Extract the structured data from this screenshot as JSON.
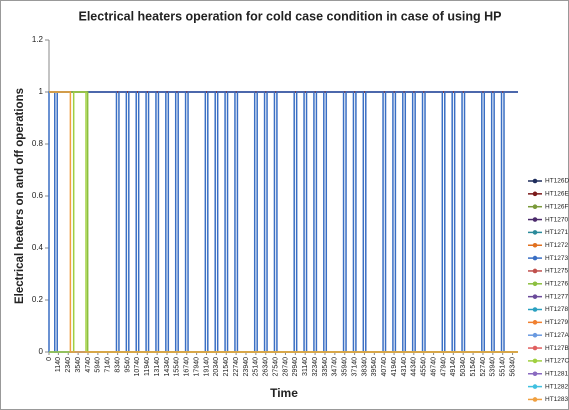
{
  "chart_data": {
    "type": "line",
    "title": "Electrical heaters operation for cold case condition in case of using HP",
    "xlabel": "Time",
    "ylabel": "Electrical heaters on and off operations",
    "xlim": [
      0,
      57000
    ],
    "xticks": [
      0,
      1140,
      2340,
      3540,
      4740,
      5940,
      7140,
      8340,
      9540,
      10740,
      11940,
      13140,
      14340,
      15540,
      16740,
      17940,
      19140,
      20340,
      21540,
      22740,
      23940,
      25140,
      26340,
      27540,
      28740,
      29940,
      31140,
      32340,
      33540,
      34740,
      35940,
      37140,
      38340,
      39540,
      40740,
      41940,
      43140,
      44340,
      45540,
      46740,
      47940,
      49140,
      50340,
      51540,
      52740,
      53940,
      55140,
      56340
    ],
    "ylim": [
      0,
      1.2
    ],
    "yticks": [
      0,
      0.2,
      0.4,
      0.6,
      0.8,
      1,
      1.2
    ],
    "legend": "right",
    "series": [
      {
        "name": "HT126D",
        "color": "#1f2d5c",
        "x": [
          0,
          57000
        ],
        "values": [
          1,
          1
        ]
      },
      {
        "name": "HT126E",
        "color": "#7b1a1a",
        "x": [
          0,
          57000
        ],
        "values": [
          1,
          1
        ]
      },
      {
        "name": "HT126F",
        "color": "#7a9a3a",
        "x": [
          0,
          57000
        ],
        "values": [
          0,
          0
        ]
      },
      {
        "name": "HT1270",
        "color": "#4b2a6b",
        "x": [
          0,
          57000
        ],
        "values": [
          0,
          0
        ]
      },
      {
        "name": "HT1271",
        "color": "#2a8a9a",
        "x": [
          0,
          57000
        ],
        "values": [
          0,
          0
        ]
      },
      {
        "name": "HT1272",
        "color": "#e07020",
        "x": [
          0,
          57000
        ],
        "values": [
          0,
          0
        ]
      },
      {
        "name": "HT1273",
        "color": "#3a6fc4",
        "x": [
          0,
          0,
          700,
          700,
          1000,
          1000,
          8200,
          8200,
          8500,
          8500,
          9400,
          9400,
          9700,
          9700,
          10600,
          10600,
          10900,
          10900,
          11800,
          11800,
          12100,
          12100,
          13000,
          13000,
          13300,
          13300,
          14200,
          14200,
          14500,
          14500,
          15400,
          15400,
          15700,
          15700,
          16600,
          16600,
          16900,
          16900,
          19000,
          19000,
          19300,
          19300,
          20200,
          20200,
          20500,
          20500,
          21400,
          21400,
          21700,
          21700,
          22600,
          22600,
          22900,
          22900,
          25000,
          25000,
          25300,
          25300,
          26200,
          26200,
          26500,
          26500,
          27400,
          27400,
          27700,
          27700,
          29800,
          29800,
          30100,
          30100,
          31000,
          31000,
          31300,
          31300,
          32200,
          32200,
          32500,
          32500,
          33400,
          33400,
          33700,
          33700,
          35800,
          35800,
          36100,
          36100,
          37000,
          37000,
          37300,
          37300,
          38200,
          38200,
          38500,
          38500,
          40600,
          40600,
          40900,
          40900,
          41800,
          41800,
          42100,
          42100,
          43000,
          43000,
          43300,
          43300,
          44200,
          44200,
          44500,
          44500,
          45400,
          45400,
          45700,
          45700,
          47800,
          47800,
          48100,
          48100,
          49000,
          49000,
          49300,
          49300,
          50200,
          50200,
          50500,
          50500,
          52600,
          52600,
          52900,
          52900,
          53800,
          53800,
          54100,
          54100,
          55000,
          55000,
          55300,
          55300,
          57000
        ],
        "values": [
          0,
          1,
          1,
          0,
          0,
          1,
          1,
          0,
          0,
          1,
          1,
          0,
          0,
          1,
          1,
          0,
          0,
          1,
          1,
          0,
          0,
          1,
          1,
          0,
          0,
          1,
          1,
          0,
          0,
          1,
          1,
          0,
          0,
          1,
          1,
          0,
          0,
          1,
          1,
          0,
          0,
          1,
          1,
          0,
          0,
          1,
          1,
          0,
          0,
          1,
          1,
          0,
          0,
          1,
          1,
          0,
          0,
          1,
          1,
          0,
          0,
          1,
          1,
          0,
          0,
          1,
          1,
          0,
          0,
          1,
          1,
          0,
          0,
          1,
          1,
          0,
          0,
          1,
          1,
          0,
          0,
          1,
          1,
          0,
          0,
          1,
          1,
          0,
          0,
          1,
          1,
          0,
          0,
          1,
          1,
          0,
          0,
          1,
          1,
          0,
          0,
          1,
          1,
          0,
          0,
          1,
          1,
          0,
          0,
          1,
          1,
          0,
          0,
          1,
          1,
          0,
          0,
          1,
          1,
          0,
          0,
          1,
          1,
          0,
          0,
          1,
          1,
          0,
          0,
          1,
          1,
          0,
          0,
          1,
          1,
          0,
          0,
          1,
          1
        ]
      },
      {
        "name": "HT1275",
        "color": "#c0504d",
        "x": [
          0,
          57000
        ],
        "values": [
          0,
          0
        ]
      },
      {
        "name": "HT1276",
        "color": "#8cbf3f",
        "x": [
          0,
          4700,
          4700,
          57000
        ],
        "values": [
          1,
          1,
          0,
          0
        ]
      },
      {
        "name": "HT1277",
        "color": "#6a4a9a",
        "x": [
          0,
          57000
        ],
        "values": [
          0,
          0
        ]
      },
      {
        "name": "HT1278",
        "color": "#2aa0c0",
        "x": [
          0,
          57000
        ],
        "values": [
          0,
          0
        ]
      },
      {
        "name": "HT1279",
        "color": "#f08030",
        "x": [
          0,
          57000
        ],
        "values": [
          0,
          0
        ]
      },
      {
        "name": "HT127A",
        "color": "#6a9ae0",
        "x": [
          0,
          57000
        ],
        "values": [
          0,
          0
        ]
      },
      {
        "name": "HT127B",
        "color": "#e06060",
        "x": [
          0,
          57000
        ],
        "values": [
          0,
          0
        ]
      },
      {
        "name": "HT127C",
        "color": "#a0d040",
        "x": [
          0,
          3000,
          3000,
          4500,
          4500,
          57000
        ],
        "values": [
          0,
          0,
          1,
          1,
          0,
          0
        ]
      },
      {
        "name": "HT1281",
        "color": "#8a6ac0",
        "x": [
          0,
          57000
        ],
        "values": [
          0,
          0
        ]
      },
      {
        "name": "HT1282",
        "color": "#40c0e0",
        "x": [
          0,
          57000
        ],
        "values": [
          0,
          0
        ]
      },
      {
        "name": "HT1283",
        "color": "#f0a040",
        "x": [
          0,
          2600,
          2600,
          57000
        ],
        "values": [
          1,
          1,
          0,
          0
        ]
      }
    ]
  }
}
